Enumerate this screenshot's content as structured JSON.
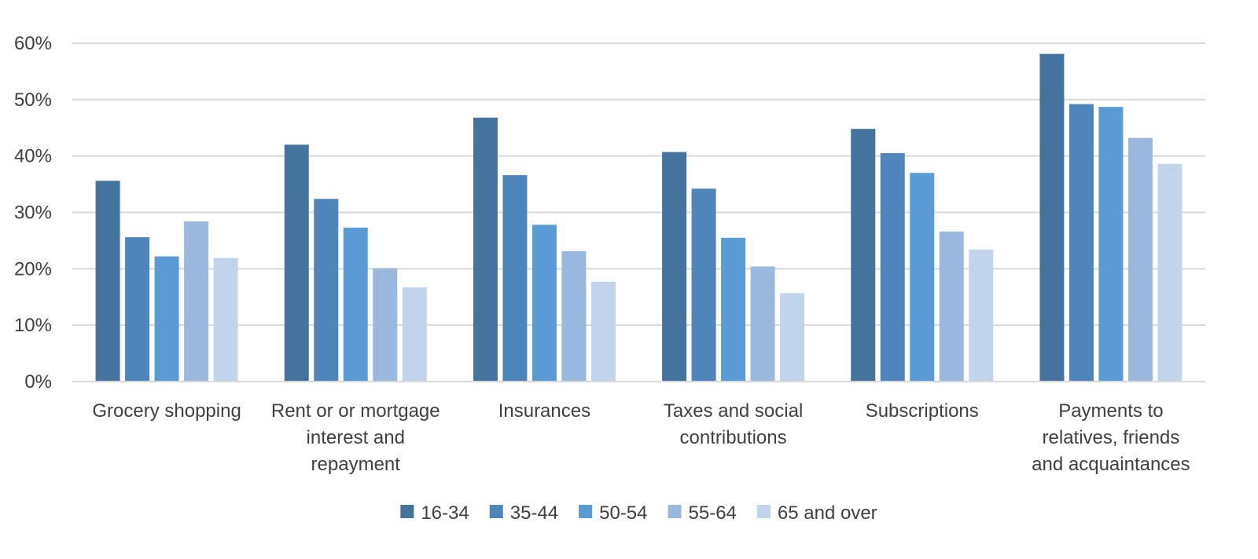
{
  "chart_data": {
    "type": "bar",
    "title": "",
    "xlabel": "",
    "ylabel": "",
    "ylim": [
      0,
      60
    ],
    "y_ticks": [
      0,
      10,
      20,
      30,
      40,
      50,
      60
    ],
    "y_tick_labels": [
      "0%",
      "10%",
      "20%",
      "30%",
      "40%",
      "50%",
      "60%"
    ],
    "grid": true,
    "legend_position": "bottom",
    "categories": [
      [
        "Grocery shopping"
      ],
      [
        "Rent or or mortgage",
        "interest and",
        "repayment"
      ],
      [
        "Insurances"
      ],
      [
        "Taxes and social",
        "contributions"
      ],
      [
        "Subscriptions"
      ],
      [
        "Payments to",
        "relatives, friends",
        "and acquaintances"
      ]
    ],
    "series": [
      {
        "name": "16-34",
        "color": "#44739e",
        "values": [
          35.6,
          42.0,
          46.8,
          40.7,
          44.8,
          58.1
        ]
      },
      {
        "name": "35-44",
        "color": "#4e86bb",
        "values": [
          25.6,
          32.4,
          36.6,
          34.2,
          40.5,
          49.2
        ]
      },
      {
        "name": "50-54",
        "color": "#5b9bd5",
        "values": [
          22.2,
          27.3,
          27.8,
          25.5,
          37.0,
          48.7
        ]
      },
      {
        "name": "55-64",
        "color": "#9ab8de",
        "values": [
          28.4,
          20.1,
          23.1,
          20.4,
          26.6,
          43.2
        ]
      },
      {
        "name": "65 and over",
        "color": "#c1d4ec",
        "values": [
          21.9,
          16.7,
          17.7,
          15.7,
          23.4,
          38.6
        ]
      }
    ]
  }
}
